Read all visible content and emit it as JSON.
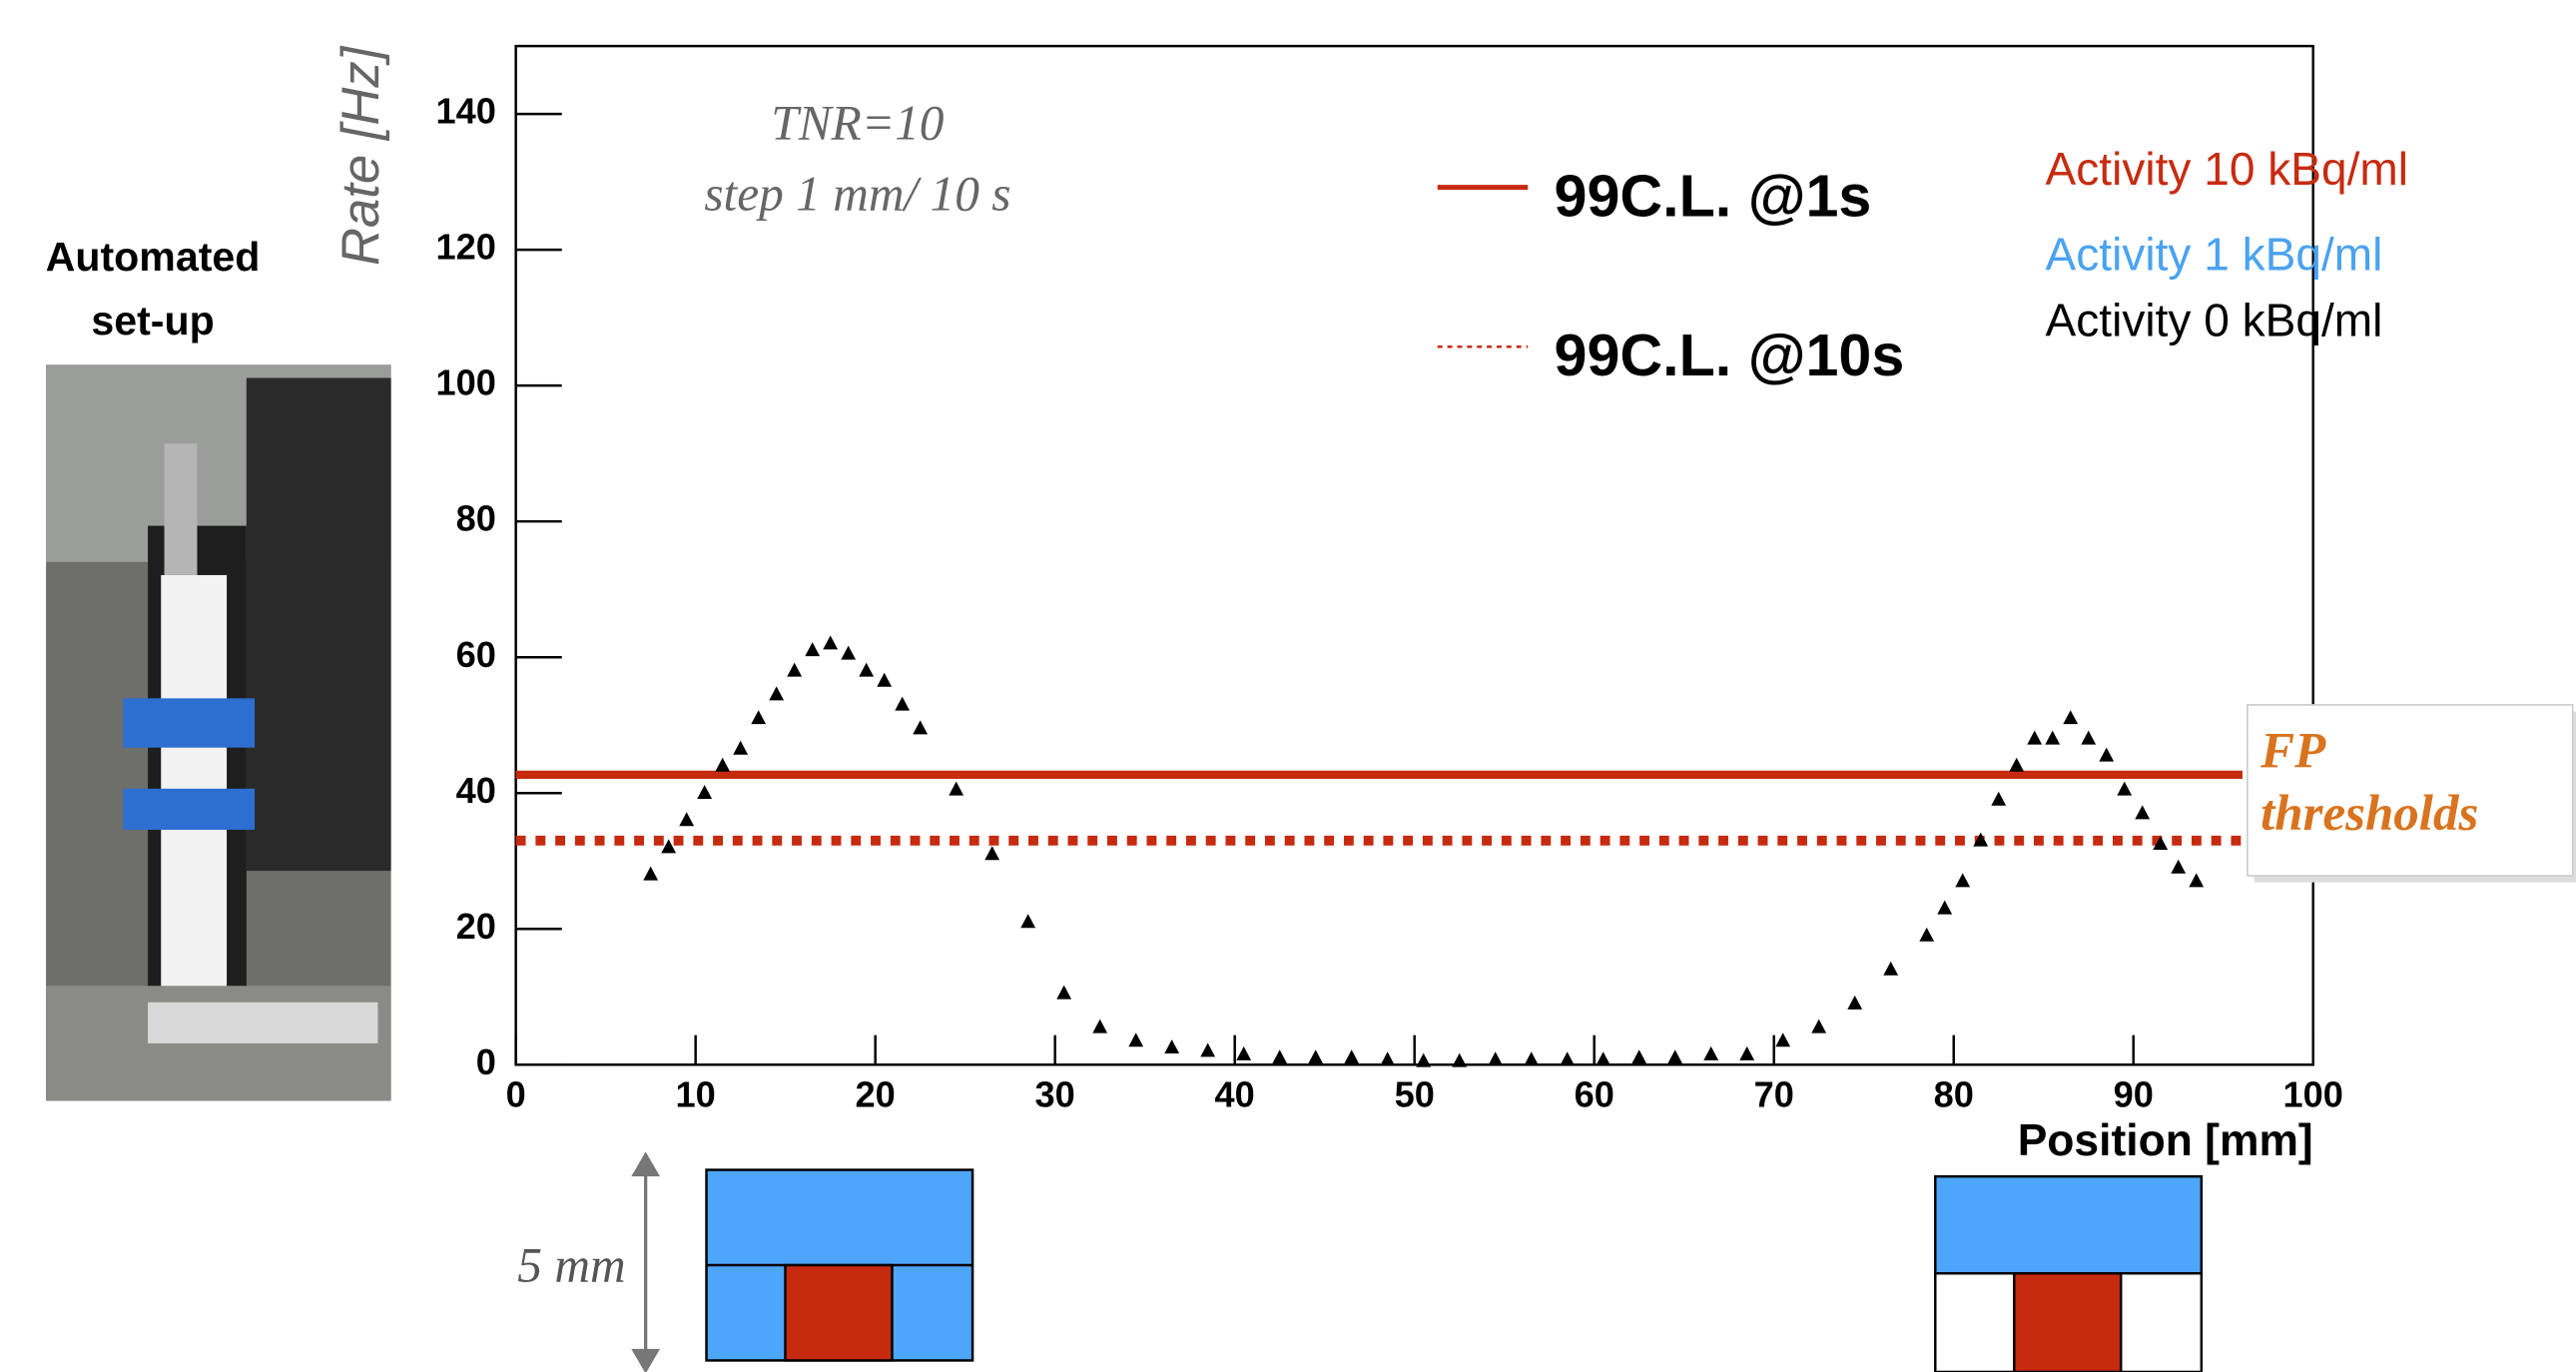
{
  "chart_data": {
    "type": "scatter",
    "ylabel": "Rate [Hz]",
    "xlabel": "Position [mm]",
    "xlim": [
      0,
      100
    ],
    "ylim": [
      0,
      150
    ],
    "xticks": [
      0,
      10,
      20,
      30,
      40,
      50,
      60,
      70,
      80,
      90,
      100
    ],
    "yticks": [
      0,
      20,
      40,
      60,
      80,
      100,
      120,
      140
    ],
    "color": "#000000",
    "x": [
      7.5,
      8.5,
      9.5,
      10.5,
      11.5,
      12.5,
      13.5,
      14.5,
      15.5,
      16.5,
      17.5,
      18.5,
      19.5,
      20.5,
      21.5,
      22.5,
      24.5,
      26.5,
      28.5,
      30.5,
      32.5,
      34.5,
      36.5,
      38.5,
      40.5,
      42.5,
      44.5,
      46.5,
      48.5,
      50.5,
      52.5,
      54.5,
      56.5,
      58.5,
      60.5,
      62.5,
      64.5,
      66.5,
      68.5,
      70.5,
      72.5,
      74.5,
      76.5,
      78.5,
      79.5,
      80.5,
      81.5,
      82.5,
      83.5,
      84.5,
      85.5,
      86.5,
      87.5,
      88.5,
      89.5,
      90.5,
      91.5,
      92.5,
      93.5
    ],
    "values": [
      28,
      32,
      36,
      40,
      44,
      46.5,
      51,
      54.5,
      58,
      61,
      62,
      60.5,
      58,
      56.5,
      53,
      49.5,
      40.5,
      31,
      21,
      10.5,
      5.5,
      3.5,
      2.5,
      2,
      1.5,
      1,
      1,
      1,
      0.7,
      0.5,
      0.5,
      0.7,
      0.7,
      0.7,
      0.7,
      1,
      1,
      1.5,
      1.5,
      3.5,
      5.5,
      9,
      14,
      19,
      23,
      27,
      33,
      39,
      44,
      48,
      48,
      51,
      48,
      45.5,
      40.5,
      37,
      32.5,
      29,
      27
    ],
    "thresholds": [
      {
        "name": "99C.L. @1s",
        "value": 42.7,
        "color": "#c62b10",
        "style": "solid"
      },
      {
        "name": "99C.L. @10s",
        "value": 33,
        "color": "#c62b10",
        "style": "dotted"
      }
    ],
    "annotations": [
      "TNR=10",
      "step 1 mm/ 10 s"
    ]
  },
  "activity_legend": [
    {
      "text": "Activity 10 kBq/ml",
      "color": "#c62b10"
    },
    {
      "text": "Activity 1 kBq/ml",
      "color": "#4aa3f0"
    },
    {
      "text": "Activity 0 kBq/ml",
      "color": "#000000"
    }
  ],
  "fp_label": [
    "FP",
    "thresholds"
  ],
  "photo_caption": [
    "Automated",
    "set-up"
  ],
  "scale_label": "5 mm"
}
